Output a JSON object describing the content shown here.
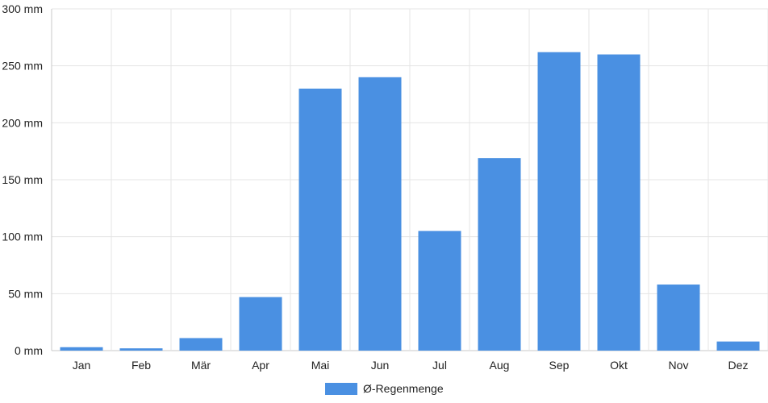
{
  "chart_data": {
    "type": "bar",
    "categories": [
      "Jan",
      "Feb",
      "Mär",
      "Apr",
      "Mai",
      "Jun",
      "Jul",
      "Aug",
      "Sep",
      "Okt",
      "Nov",
      "Dez"
    ],
    "series": [
      {
        "name": "Ø-Regenmenge",
        "values": [
          3,
          2,
          11,
          47,
          230,
          240,
          105,
          169,
          262,
          260,
          58,
          8
        ],
        "color": "#4a90e2"
      }
    ],
    "y_ticks": [
      "0 mm",
      "50 mm",
      "100 mm",
      "150 mm",
      "200 mm",
      "250 mm",
      "300 mm"
    ],
    "ylim": [
      0,
      300
    ],
    "grid": true,
    "legend_position": "bottom-center"
  }
}
